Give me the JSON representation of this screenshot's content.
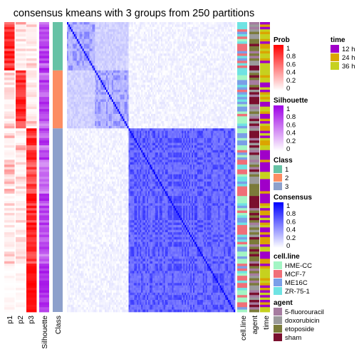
{
  "chart_data": {
    "type": "heatmap",
    "title": "consensus kmeans with 3 groups from 250 partitions",
    "n_samples": 120,
    "class_sizes": [
      20,
      24,
      76
    ],
    "column_labels": [
      "p1",
      "p2",
      "p3",
      "Silhouette",
      "Class",
      "cell.line",
      "agent",
      "time"
    ],
    "legends": [
      {
        "title": "Prob",
        "type": "continuous",
        "ticks": [
          "1",
          "0.8",
          "0.6",
          "0.4",
          "0.2",
          "0"
        ],
        "colors": [
          "#ff0000",
          "#ffffff"
        ]
      },
      {
        "title": "Silhouette",
        "type": "continuous",
        "ticks": [
          "1",
          "0.8",
          "0.6",
          "0.4",
          "0.2",
          "0"
        ],
        "colors": [
          "#9e00e6",
          "#ffffff"
        ]
      },
      {
        "title": "Class",
        "type": "discrete",
        "items": [
          {
            "label": "1",
            "color": "#66c2a5"
          },
          {
            "label": "2",
            "color": "#fc8d62"
          },
          {
            "label": "3",
            "color": "#8da0cb"
          }
        ]
      },
      {
        "title": "Consensus",
        "type": "continuous",
        "ticks": [
          "1",
          "0.8",
          "0.6",
          "0.4",
          "0.2",
          "0"
        ],
        "colors": [
          "#0000ff",
          "#ffffff"
        ]
      },
      {
        "title": "cell.line",
        "type": "discrete",
        "items": [
          {
            "label": "HME-CC",
            "color": "#a3f5c4"
          },
          {
            "label": "MCF-7",
            "color": "#f06f78"
          },
          {
            "label": "ME16C",
            "color": "#7a9fe8"
          },
          {
            "label": "ZR-75-1",
            "color": "#6fe3e3"
          }
        ]
      },
      {
        "title": "agent",
        "type": "discrete",
        "items": [
          {
            "label": "5-fluorouracil",
            "color": "#a67ca0"
          },
          {
            "label": "doxorubicin",
            "color": "#9b9b9b"
          },
          {
            "label": "etoposide",
            "color": "#7b7b3a"
          },
          {
            "label": "sham",
            "color": "#7a0f2e"
          }
        ]
      },
      {
        "title": "time",
        "type": "discrete",
        "items": [
          {
            "label": "12 h",
            "color": "#a000c8"
          },
          {
            "label": "24 h",
            "color": "#dba400"
          },
          {
            "label": "36 h",
            "color": "#c6d11f"
          }
        ]
      }
    ]
  }
}
